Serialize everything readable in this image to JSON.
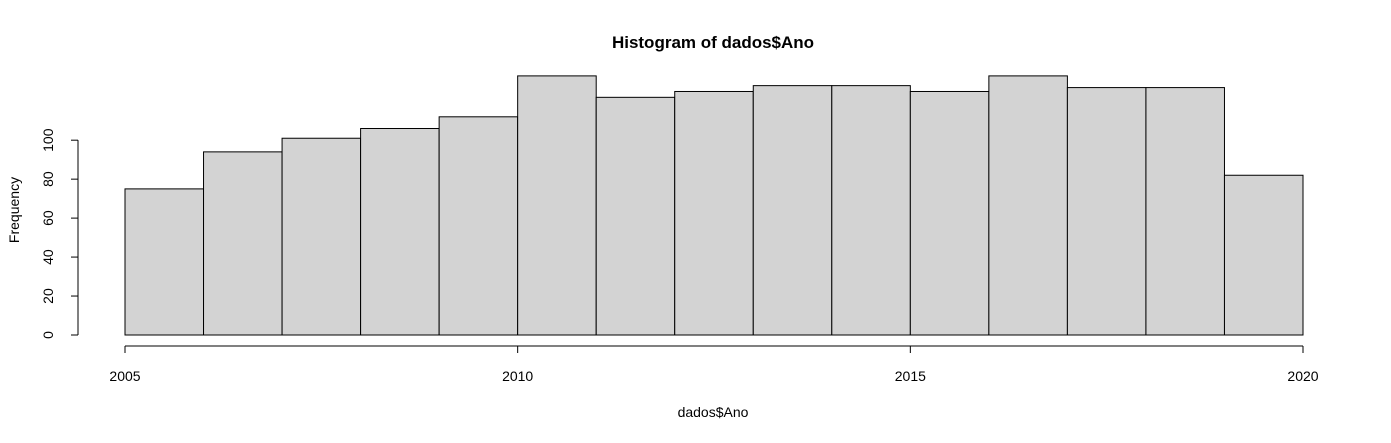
{
  "chart_data": {
    "type": "bar",
    "title": "Histogram of dados$Ano",
    "xlabel": "dados$Ano",
    "ylabel": "Frequency",
    "bin_edges": [
      2005,
      2006,
      2007,
      2008,
      2009,
      2010,
      2011,
      2012,
      2013,
      2014,
      2015,
      2016,
      2017,
      2018,
      2019,
      2020
    ],
    "values": [
      75,
      94,
      101,
      106,
      112,
      133,
      122,
      125,
      128,
      128,
      125,
      133,
      127,
      127,
      82
    ],
    "xlim": [
      2005,
      2020
    ],
    "ylim": [
      0,
      135
    ],
    "x_ticks": [
      2005,
      2010,
      2015,
      2020
    ],
    "y_ticks": [
      0,
      20,
      40,
      60,
      80,
      100
    ],
    "grid": false,
    "legend": "none",
    "bar_color": "#d3d3d3",
    "edge_color": "#000000"
  }
}
